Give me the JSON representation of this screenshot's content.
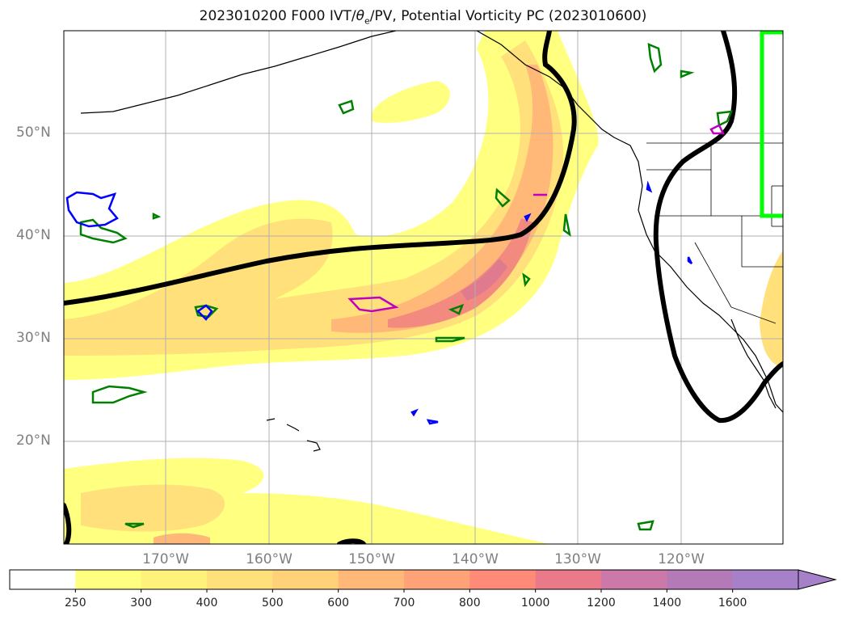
{
  "title_prefix": "2023010200 F000 IVT/",
  "title_theta": "θ",
  "title_sub": "e",
  "title_suffix": "/PV, Potential Vorticity PC (2023010600)",
  "lat_labels": [
    {
      "text": "50°N",
      "lat": 50
    },
    {
      "text": "40°N",
      "lat": 40
    },
    {
      "text": "30°N",
      "lat": 30
    },
    {
      "text": "20°N",
      "lat": 20
    }
  ],
  "lon_labels": [
    {
      "text": "170°W",
      "lon": -170
    },
    {
      "text": "160°W",
      "lon": -160
    },
    {
      "text": "150°W",
      "lon": -150
    },
    {
      "text": "140°W",
      "lon": -140
    },
    {
      "text": "130°W",
      "lon": -130
    },
    {
      "text": "120°W",
      "lon": -120
    }
  ],
  "colorbar": {
    "ticks": [
      "250",
      "300",
      "400",
      "500",
      "600",
      "700",
      "800",
      "1000",
      "1200",
      "1400",
      "1600"
    ],
    "colors": [
      "#ffffff",
      "#ffff80",
      "#fff27a",
      "#ffe07a",
      "#ffd27a",
      "#ffb878",
      "#ffa278",
      "#ff8a78",
      "#ea7a8a",
      "#cc78a8",
      "#b47ab8",
      "#a680c8"
    ]
  },
  "colors": {
    "ivt_low": "#ffff80",
    "ivt_mid": "#ffd27a",
    "ivt_high": "#f28a80",
    "pv_positive": "#008000",
    "pv_negative": "#0000ff",
    "pv_magenta": "#c000c0",
    "theta_e_contour": "#000000",
    "domain_box": "#00ff00",
    "coastline": "#000000"
  }
}
